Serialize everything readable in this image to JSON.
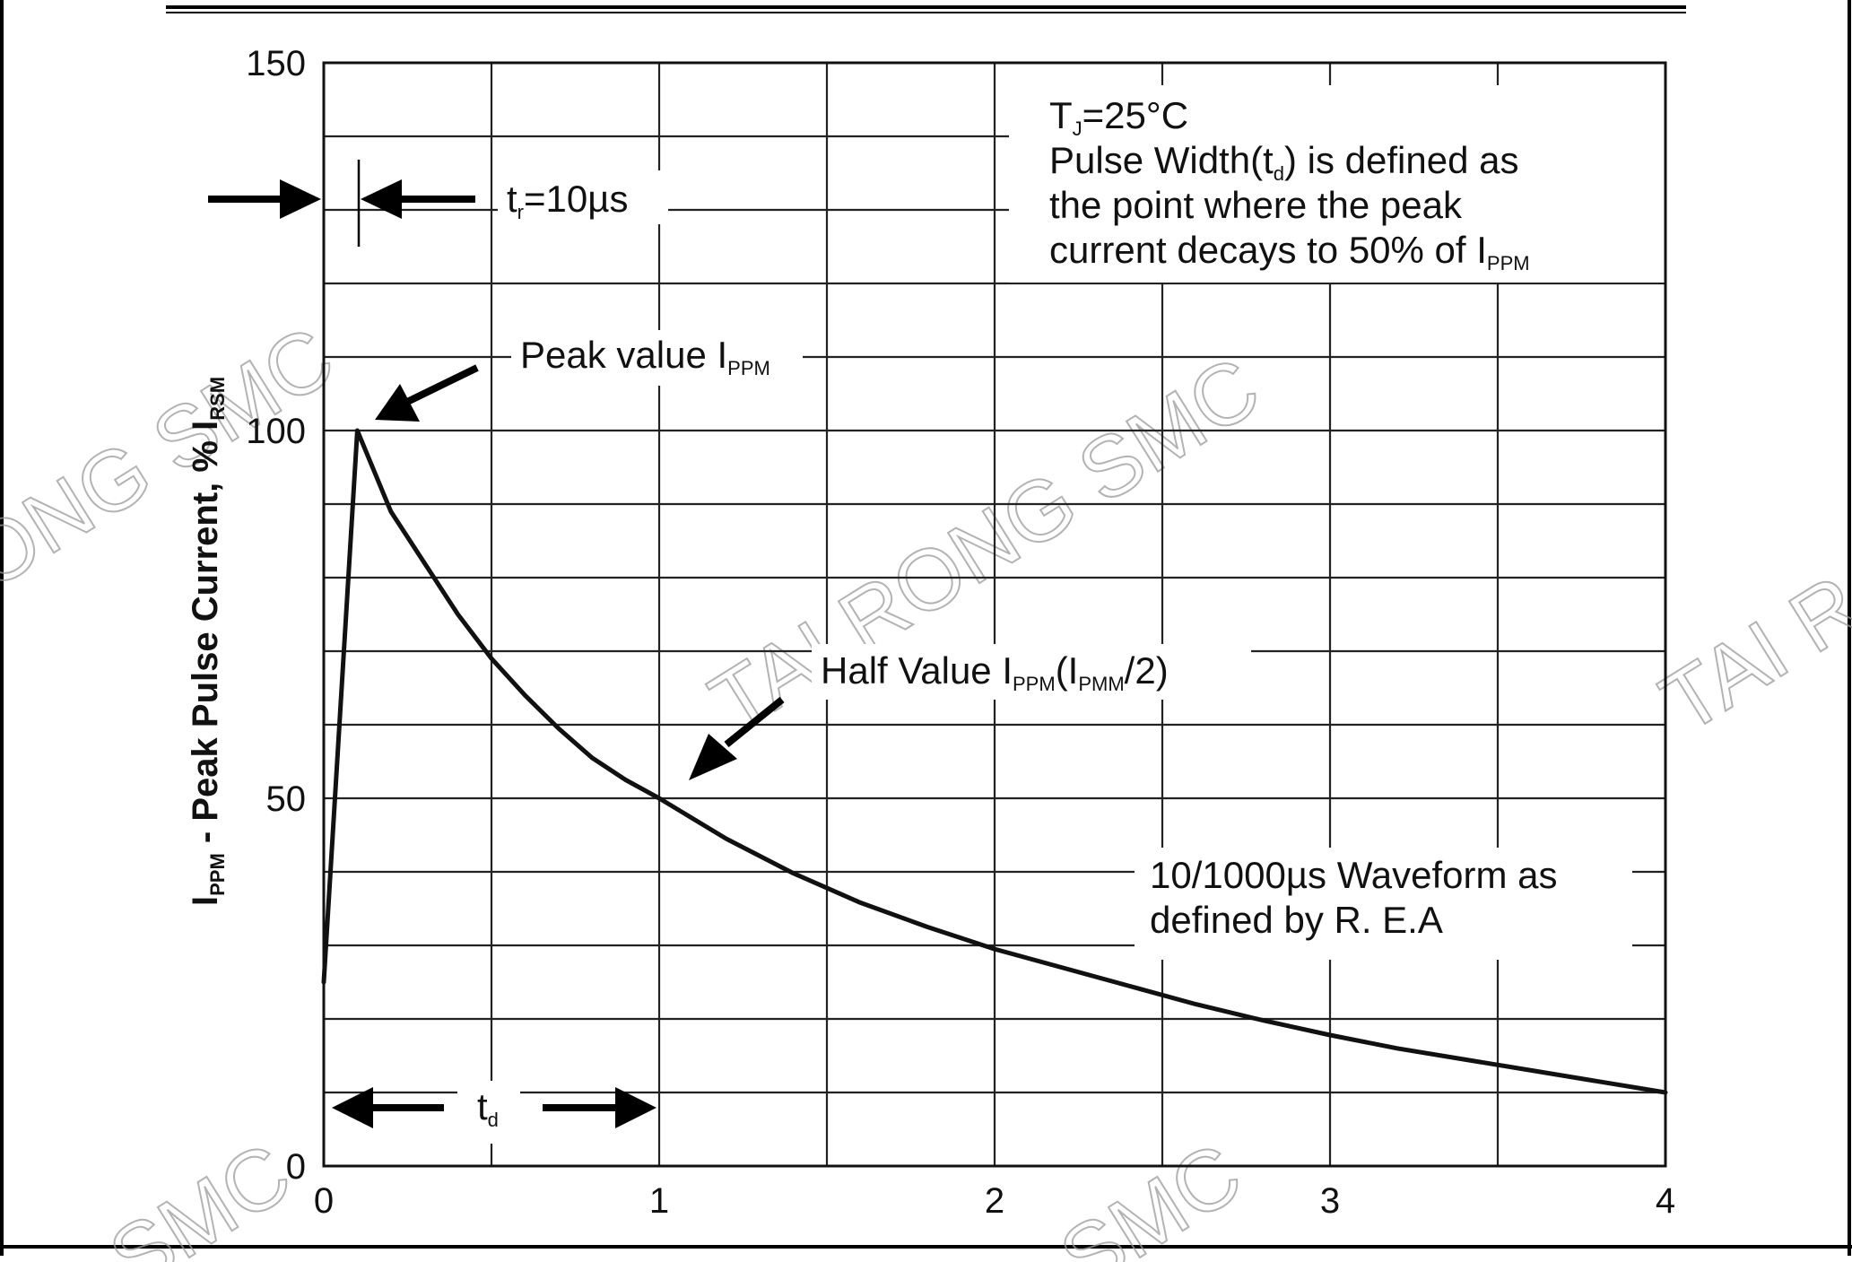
{
  "chart_data": {
    "type": "line",
    "ylabel_main": "I",
    "ylabel_main_sub": "PPM",
    "ylabel_rest": " - Peak Pulse Current, % I",
    "ylabel_rest_sub": "RSM",
    "xlim": [
      0,
      4
    ],
    "ylim": [
      0,
      150
    ],
    "x_ticks": [
      "0",
      "1",
      "2",
      "3",
      "4"
    ],
    "y_ticks": [
      "0",
      "50",
      "100",
      "150"
    ],
    "grid": true,
    "series": [
      {
        "x": [
          0,
          0.1,
          0.2,
          0.3,
          0.4,
          0.5,
          0.6,
          0.7,
          0.8,
          0.9,
          1.0,
          1.2,
          1.4,
          1.6,
          1.8,
          2.0,
          2.2,
          2.4,
          2.6,
          2.8,
          3.0,
          3.2,
          3.4,
          3.6,
          3.8,
          4.0
        ],
        "y": [
          25,
          100,
          89,
          82,
          75,
          69,
          64,
          59.5,
          55.5,
          52.5,
          50,
          44.5,
          39.8,
          35.8,
          32.5,
          29.5,
          27,
          24.5,
          22,
          19.8,
          17.8,
          16,
          14.5,
          13,
          11.5,
          10
        ]
      }
    ],
    "annotations": {
      "tr_label": "t",
      "tr_label_sub": "r",
      "tr_value": "=10µs",
      "peak_label": "Peak value I",
      "peak_label_sub": "PPM",
      "half_label": "Half Value I",
      "half_label_sub1": "PPM",
      "half_label_mid": "(I",
      "half_label_sub2": "PMM",
      "half_label_end": "/2)",
      "td_label": "t",
      "td_label_sub": "d",
      "note_line1_a": "T",
      "note_line1_sub": "J",
      "note_line1_b": "=25°C",
      "note_line2_a": "Pulse Width(t",
      "note_line2_sub": "d",
      "note_line2_b": ") is defined as",
      "note_line3": "the point where the peak",
      "note_line4_a": "current decays to 50% of I",
      "note_line4_sub": "PPM",
      "wave_line1": "10/1000µs Waveform as",
      "wave_line2": "defined by R. E.A"
    },
    "watermarks": [
      "TAI RONG SMC",
      "ONG SMC",
      "TAI R",
      "SMC",
      "SMC"
    ]
  }
}
